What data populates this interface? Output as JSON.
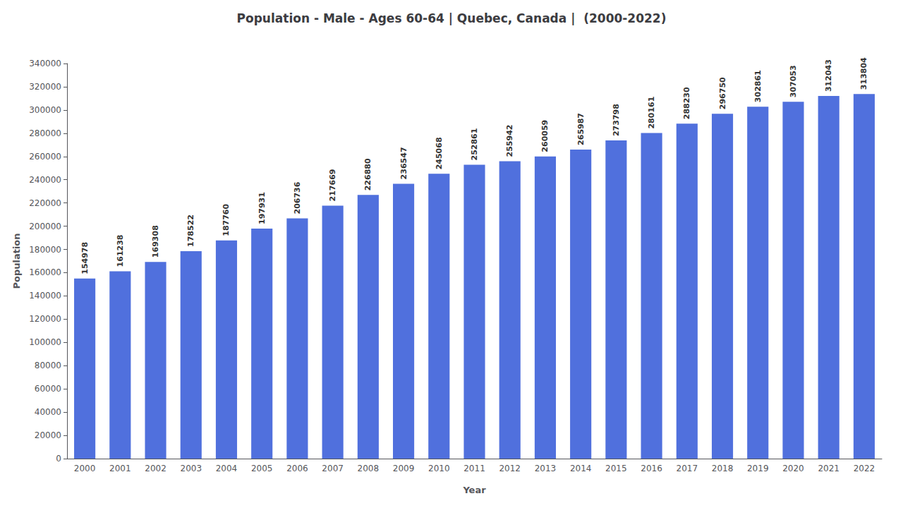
{
  "chart_data": {
    "type": "bar",
    "title": "Population - Male - Ages 60-64 | Quebec, Canada |  (2000-2022)",
    "xlabel": "Year",
    "ylabel": "Population",
    "categories": [
      "2000",
      "2001",
      "2002",
      "2003",
      "2004",
      "2005",
      "2006",
      "2007",
      "2008",
      "2009",
      "2010",
      "2011",
      "2012",
      "2013",
      "2014",
      "2015",
      "2016",
      "2017",
      "2018",
      "2019",
      "2020",
      "2021",
      "2022"
    ],
    "values": [
      154978,
      161238,
      169308,
      178522,
      187760,
      197931,
      206736,
      217669,
      226880,
      236547,
      245068,
      252861,
      255942,
      260059,
      265987,
      273798,
      280161,
      288230,
      296750,
      302861,
      307053,
      312043,
      313804
    ],
    "ylim": [
      0,
      340000
    ],
    "yticks": [
      0,
      20000,
      40000,
      60000,
      80000,
      100000,
      120000,
      140000,
      160000,
      180000,
      200000,
      220000,
      240000,
      260000,
      280000,
      300000,
      320000,
      340000
    ],
    "grid": false,
    "data_labels": true
  }
}
